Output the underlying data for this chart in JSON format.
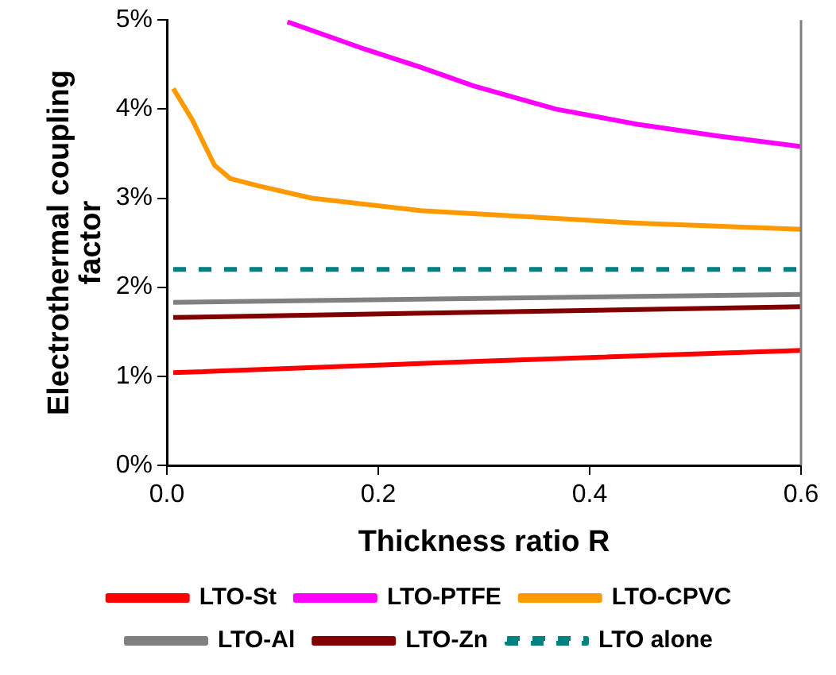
{
  "chart_data": {
    "type": "line",
    "xlabel": "Thickness ratio R",
    "ylabel": "Electrothermal coupling factor",
    "xlim": [
      0,
      0.6
    ],
    "xticks": [
      {
        "value": 0,
        "label": "0.0"
      },
      0.2,
      0.4,
      0.6
    ],
    "ylim": [
      0,
      5
    ],
    "yticks": [
      {
        "value": 0,
        "label": "0%"
      },
      {
        "value": 1,
        "label": "1%"
      },
      {
        "value": 2,
        "label": "2%"
      },
      {
        "value": 3,
        "label": "3%"
      },
      {
        "value": 4,
        "label": "4%"
      },
      {
        "value": 5,
        "label": "5%"
      }
    ],
    "grid": false,
    "legend": "bottom",
    "marker": "none",
    "series": [
      {
        "name": "LTO-St",
        "color": "#ff0000",
        "x": [
          0.006,
          0.3,
          0.6
        ],
        "values": [
          1.04,
          1.17,
          1.29
        ]
      },
      {
        "name": "LTO-PTFE",
        "color": "#ff00ff",
        "x": [
          0.114,
          0.188,
          0.24,
          0.29,
          0.368,
          0.445,
          0.52,
          0.6
        ],
        "values": [
          4.98,
          4.67,
          4.47,
          4.26,
          4.0,
          3.83,
          3.7,
          3.58
        ]
      },
      {
        "name": "LTO-CPVC",
        "color": "#ff9900",
        "x": [
          0.006,
          0.024,
          0.045,
          0.06,
          0.086,
          0.137,
          0.24,
          0.342,
          0.445,
          0.6
        ],
        "values": [
          4.23,
          3.88,
          3.37,
          3.22,
          3.14,
          3.0,
          2.86,
          2.79,
          2.72,
          2.65
        ]
      },
      {
        "name": "LTO-Al",
        "color": "#808080",
        "x": [
          0.006,
          0.6
        ],
        "values": [
          1.83,
          1.92
        ]
      },
      {
        "name": "LTO-Zn",
        "color": "#800000",
        "x": [
          0.006,
          0.6
        ],
        "values": [
          1.66,
          1.78
        ]
      },
      {
        "name": "LTO alone",
        "color": "#008080",
        "line_style": "dashed",
        "x": [
          0.006,
          0.6
        ],
        "values": [
          2.2,
          2.2
        ]
      }
    ]
  }
}
